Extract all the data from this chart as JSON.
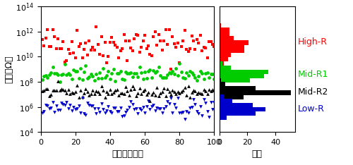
{
  "xlabel_left": "繰り返し回数",
  "ylabel_left": "抵抗（Ω）",
  "xlabel_right": "頻度",
  "xlim_left": [
    0,
    100
  ],
  "ylim": [
    10000.0,
    100000000000000.0
  ],
  "series_names": [
    "High-R",
    "Mid-R1",
    "Mid-R2",
    "Low-R"
  ],
  "series": {
    "High-R": {
      "color": "#ff0000",
      "marker": "s",
      "log_mean": 11.0,
      "log_std": 0.75
    },
    "Mid-R1": {
      "color": "#00cc00",
      "marker": "o",
      "log_mean": 8.6,
      "log_std": 0.32
    },
    "Mid-R2": {
      "color": "#000000",
      "marker": "^",
      "log_mean": 7.2,
      "log_std": 0.22
    },
    "Low-R": {
      "color": "#0000cc",
      "marker": "v",
      "log_mean": 5.85,
      "log_std": 0.4
    }
  },
  "label_positions_log": {
    "High-R": 11.2,
    "Mid-R1": 8.6,
    "Mid-R2": 7.2,
    "Low-R": 5.85
  },
  "label_colors": {
    "High-R": "#ff0000",
    "Mid-R1": "#00cc00",
    "Mid-R2": "#000000",
    "Low-R": "#0000cc"
  },
  "n_points": 100,
  "seed": 42,
  "n_bins": 30,
  "label_fontsize": 9,
  "tick_fontsize": 8,
  "marker_size": 12
}
